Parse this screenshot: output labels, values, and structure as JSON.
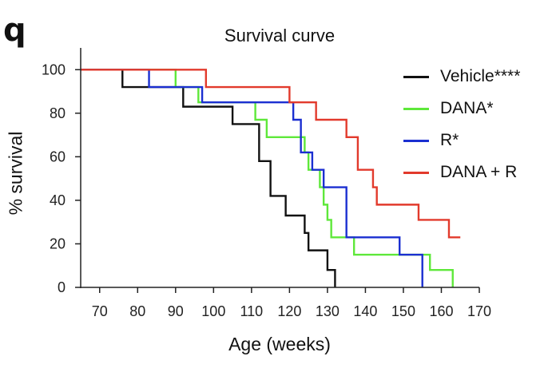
{
  "panel_label": "q",
  "chart_data": {
    "type": "line",
    "step": true,
    "title": "Survival curve",
    "xlabel": "Age (weeks)",
    "ylabel": "% survival",
    "xlim": [
      65,
      170
    ],
    "ylim": [
      0,
      110
    ],
    "xticks": [
      "70",
      "80",
      "90",
      "100",
      "110",
      "120",
      "130",
      "140",
      "150",
      "160",
      "170"
    ],
    "yticks": [
      "0",
      "20",
      "40",
      "60",
      "80",
      "100"
    ],
    "series": [
      {
        "name": "Vehicle****",
        "color": "#111111",
        "points": [
          [
            65,
            100
          ],
          [
            76,
            92
          ],
          [
            92,
            83
          ],
          [
            105,
            75
          ],
          [
            112,
            58
          ],
          [
            115,
            42
          ],
          [
            119,
            33
          ],
          [
            124,
            25
          ],
          [
            125,
            17
          ],
          [
            128,
            17
          ],
          [
            130,
            8
          ],
          [
            132,
            0
          ]
        ]
      },
      {
        "name": "DANA*",
        "color": "#5ee83a",
        "points": [
          [
            65,
            100
          ],
          [
            90,
            92
          ],
          [
            96,
            85
          ],
          [
            111,
            77
          ],
          [
            114,
            69
          ],
          [
            124,
            62
          ],
          [
            125,
            54
          ],
          [
            128,
            46
          ],
          [
            129,
            38
          ],
          [
            130,
            31
          ],
          [
            131,
            23
          ],
          [
            137,
            15
          ],
          [
            157,
            8
          ],
          [
            163,
            0
          ]
        ]
      },
      {
        "name": "R*",
        "color": "#1b2fd1",
        "points": [
          [
            65,
            100
          ],
          [
            83,
            92
          ],
          [
            97,
            85
          ],
          [
            121,
            77
          ],
          [
            123,
            62
          ],
          [
            126,
            54
          ],
          [
            129,
            46
          ],
          [
            135,
            23
          ],
          [
            149,
            15
          ],
          [
            155,
            0
          ]
        ]
      },
      {
        "name": "DANA + R",
        "color": "#e23a2c",
        "points": [
          [
            65,
            100
          ],
          [
            98,
            92
          ],
          [
            120,
            85
          ],
          [
            127,
            77
          ],
          [
            135,
            69
          ],
          [
            138,
            54
          ],
          [
            142,
            46
          ],
          [
            143,
            38
          ],
          [
            154,
            31
          ],
          [
            162,
            23
          ],
          [
            165,
            23
          ]
        ]
      }
    ]
  }
}
